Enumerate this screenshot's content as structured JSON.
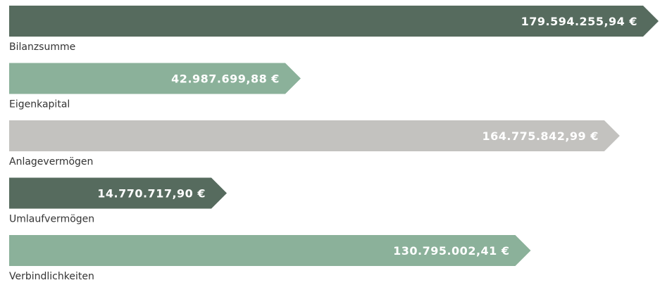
{
  "chart_data": {
    "type": "bar",
    "categories": [
      "Bilanzsumme",
      "Eigenkapital",
      "Anlagevermögen",
      "Umlaufvermögen",
      "Verbindlichkeiten"
    ],
    "values": [
      179594255.94,
      42987699.88,
      164775842.99,
      14770717.9,
      130795002.41
    ],
    "value_labels": [
      "179.594.255,94 €",
      "42.987.699,88 €",
      "164.775.842,99 €",
      "14.770.717,90 €",
      "130.795.002,41 €"
    ],
    "colors": [
      "#566b5e",
      "#8bb19a",
      "#c3c2bf",
      "#566b5e",
      "#8bb19a"
    ]
  }
}
